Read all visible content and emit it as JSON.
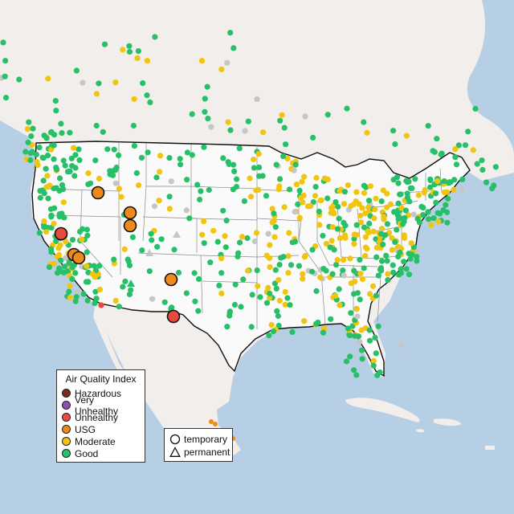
{
  "colors": {
    "water": "#b7cfe5",
    "land": "#f1eeeb",
    "us_land": "#fafafa",
    "hazardous": "#7e2b1f",
    "very_unhealthy": "#8f4fb1",
    "unhealthy": "#e84a3f",
    "usg": "#ee8a1c",
    "moderate": "#f1c40f",
    "good": "#27c068",
    "no_data": "#c6c6c6"
  },
  "legend": {
    "title": "Air Quality Index",
    "items": [
      {
        "label": "Hazardous",
        "color": "#7e2b1f"
      },
      {
        "label": "Very Unhealthy",
        "color": "#8f4fb1"
      },
      {
        "label": "Unhealthy",
        "color": "#e84a3f"
      },
      {
        "label": "USG",
        "color": "#ee8a1c"
      },
      {
        "label": "Moderate",
        "color": "#f1c40f"
      },
      {
        "label": "Good",
        "color": "#27c068"
      }
    ]
  },
  "type_legend": {
    "items": [
      {
        "label": "temporary",
        "symbol": "circle-icon"
      },
      {
        "label": "permanent",
        "symbol": "triangle-icon"
      }
    ]
  }
}
